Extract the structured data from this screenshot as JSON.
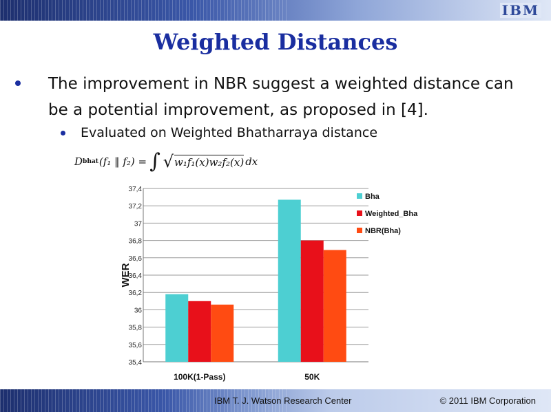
{
  "header": {
    "logo_text": "IBM"
  },
  "slide": {
    "title": "Weighted Distances",
    "bullet_main": "The improvement in NBR suggest a weighted distance can be a potential improvement, as proposed in [4].",
    "bullet_sub": "Evaluated on Weighted Bhatharraya distance",
    "formula": {
      "lhs": "D",
      "lhs_sub": "bhat",
      "args": "(f₁ ‖ f₂) =",
      "integral": "∫",
      "radicand": "w₁f₁(x)w₂f₂(x)",
      "tail": "dx"
    }
  },
  "footer": {
    "center": "IBM T. J. Watson Research Center",
    "right": "© 2011 IBM Corporation"
  },
  "chart_data": {
    "type": "bar",
    "categories": [
      "100K(1-Pass)",
      "50K"
    ],
    "series": [
      {
        "name": "Bha",
        "values": [
          36.18,
          37.27
        ],
        "color": "#4dcfd2"
      },
      {
        "name": "Weighted_Bha",
        "values": [
          36.1,
          36.8
        ],
        "color": "#e8101a"
      },
      {
        "name": "NBR(Bha)",
        "values": [
          36.06,
          36.69
        ],
        "color": "#ff4b12"
      }
    ],
    "ylabel": "WER",
    "ylim": [
      35.4,
      37.4
    ],
    "yticks": [
      "35,4",
      "35,6",
      "35,8",
      "36",
      "36,2",
      "36,4",
      "36,6",
      "36,8",
      "37",
      "37,2",
      "37,4"
    ],
    "grid": true,
    "legend": "right"
  }
}
